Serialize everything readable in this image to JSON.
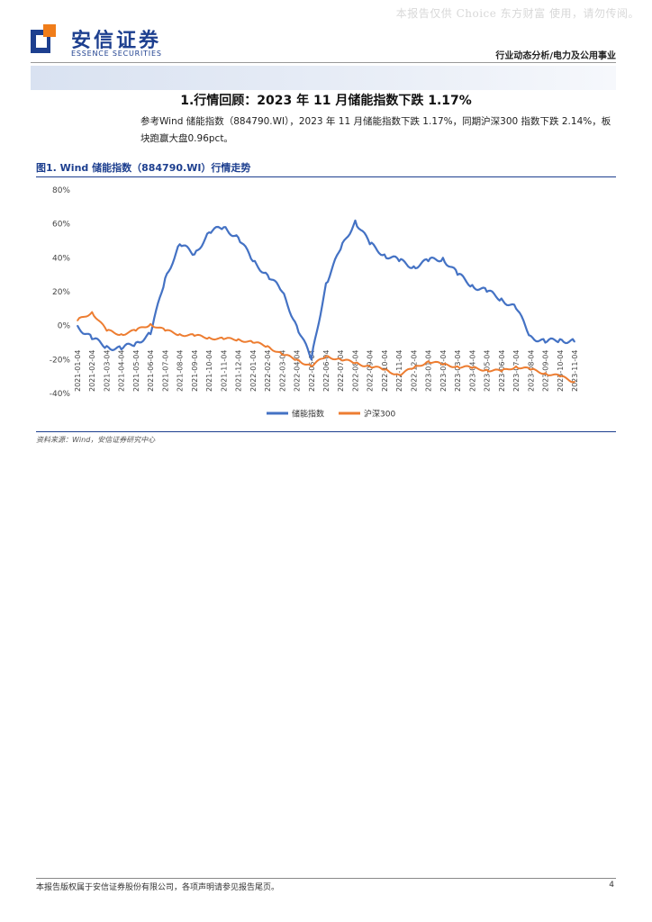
{
  "watermark": "本报告仅供 Choice 东方财富 使用，请勿传阅。",
  "brand": {
    "name_cn": "安信证券",
    "name_en": "ESSENCE SECURITIES",
    "primary_color": "#1d3f8f",
    "accent_color": "#f07d1a"
  },
  "header": {
    "category": "行业动态分析/电力及公用事业"
  },
  "section": {
    "title": "1.行情回顾：2023 年 11 月储能指数下跌 1.17%",
    "body": "参考Wind 储能指数（884790.WI），2023 年 11 月储能指数下跌 1.17%，同期沪深300 指数下跌 2.14%，板块跑赢大盘0.96pct。"
  },
  "figure": {
    "title": "图1. Wind 储能指数（884790.WI）行情走势",
    "source": "资料来源：Wind，安信证券研究中心"
  },
  "chart_data": {
    "type": "line",
    "title": "",
    "xlabel": "",
    "ylabel": "",
    "ylim": [
      -40,
      80
    ],
    "yticks": [
      -40,
      -20,
      0,
      20,
      40,
      60,
      80
    ],
    "ytick_labels": [
      "-40%",
      "-20%",
      "0%",
      "20%",
      "40%",
      "60%",
      "80%"
    ],
    "grid": false,
    "legend_position": "bottom",
    "x_tick_labels": [
      "2021-01-04",
      "2021-02-04",
      "2021-03-04",
      "2021-04-04",
      "2021-05-04",
      "2021-06-04",
      "2021-07-04",
      "2021-08-04",
      "2021-09-04",
      "2021-10-04",
      "2021-11-04",
      "2021-12-04",
      "2022-01-04",
      "2022-02-04",
      "2022-03-04",
      "2022-04-04",
      "2022-05-04",
      "2022-06-04",
      "2022-07-04",
      "2022-08-04",
      "2022-09-04",
      "2022-10-04",
      "2022-11-04",
      "2022-12-04",
      "2023-01-04",
      "2023-02-04",
      "2023-03-04",
      "2023-04-04",
      "2023-05-04",
      "2023-06-04",
      "2023-07-04",
      "2023-08-04",
      "2023-09-04",
      "2023-10-04",
      "2023-11-04"
    ],
    "series": [
      {
        "name": "储能指数",
        "color": "#4472c4",
        "values": [
          0,
          -8,
          -12,
          -14,
          -10,
          -5,
          28,
          48,
          42,
          55,
          58,
          52,
          38,
          30,
          20,
          0,
          -20,
          25,
          45,
          62,
          48,
          42,
          38,
          35,
          38,
          40,
          30,
          24,
          20,
          16,
          10,
          -6,
          -10,
          -8,
          -9.5
        ]
      },
      {
        "name": "沪深300",
        "color": "#ed7d31",
        "values": [
          3,
          8,
          -3,
          -5,
          -3,
          1,
          -3,
          -5,
          -6,
          -7,
          -8,
          -8,
          -10,
          -12,
          -17,
          -20,
          -24,
          -18,
          -20,
          -22,
          -24,
          -26,
          -29,
          -25,
          -21,
          -23,
          -24,
          -25,
          -26,
          -27,
          -24,
          -26,
          -28,
          -30,
          -33
        ]
      }
    ]
  },
  "footer": {
    "disclaimer": "本报告版权属于安信证券股份有限公司，各项声明请参见报告尾页。",
    "page_number": "4"
  }
}
